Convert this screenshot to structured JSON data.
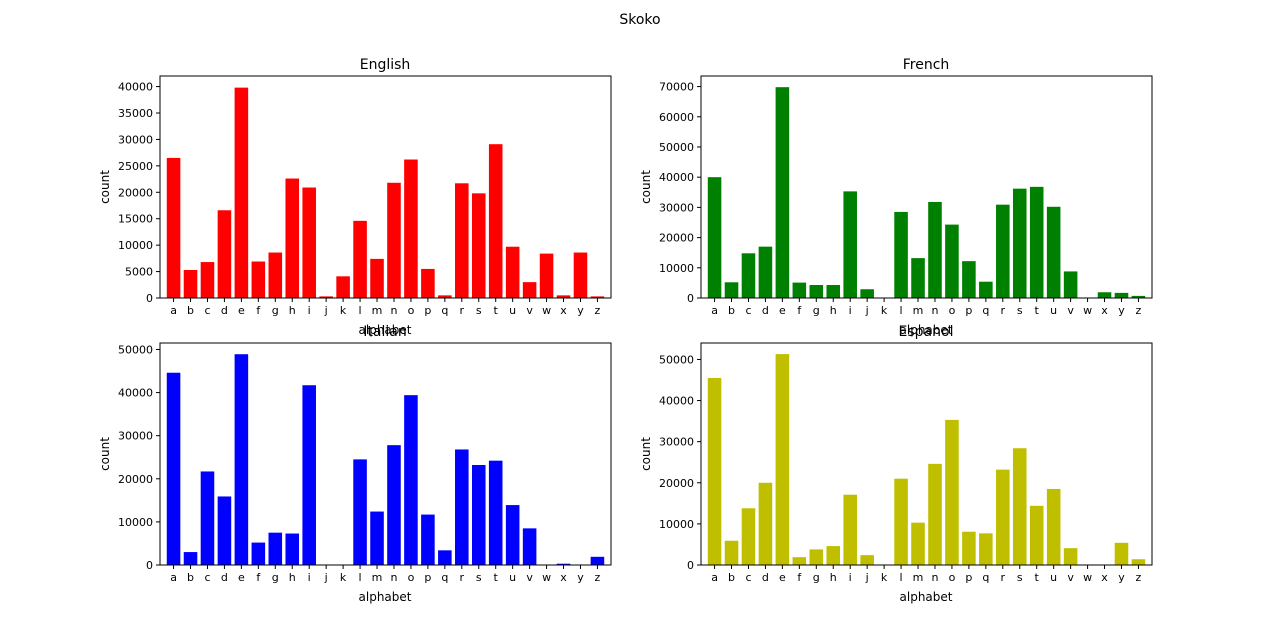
{
  "suptitle": "Skoko",
  "chart_data": [
    {
      "type": "bar",
      "title": "English",
      "xlabel": "alphabet",
      "ylabel": "count",
      "color": "#ff0000",
      "ylim": [
        0,
        42000
      ],
      "yticks": [
        0,
        5000,
        10000,
        15000,
        20000,
        25000,
        30000,
        35000,
        40000
      ],
      "categories": [
        "a",
        "b",
        "c",
        "d",
        "e",
        "f",
        "g",
        "h",
        "i",
        "j",
        "k",
        "l",
        "m",
        "n",
        "o",
        "p",
        "q",
        "r",
        "s",
        "t",
        "u",
        "v",
        "w",
        "x",
        "y",
        "z"
      ],
      "values": [
        26500,
        5300,
        6800,
        16600,
        39800,
        6900,
        8600,
        22600,
        20900,
        300,
        4100,
        14600,
        7400,
        21800,
        26200,
        5500,
        500,
        21700,
        19800,
        29100,
        9700,
        3000,
        8400,
        500,
        8600,
        300
      ],
      "grid": false,
      "legend": "none"
    },
    {
      "type": "bar",
      "title": "French",
      "xlabel": "alphabet",
      "ylabel": "count",
      "color": "#008000",
      "ylim": [
        0,
        73500
      ],
      "yticks": [
        0,
        10000,
        20000,
        30000,
        40000,
        50000,
        60000,
        70000
      ],
      "categories": [
        "a",
        "b",
        "c",
        "d",
        "e",
        "f",
        "g",
        "h",
        "i",
        "j",
        "k",
        "l",
        "m",
        "n",
        "o",
        "p",
        "q",
        "r",
        "s",
        "t",
        "u",
        "v",
        "w",
        "x",
        "y",
        "z"
      ],
      "values": [
        40000,
        5200,
        14800,
        17000,
        69800,
        5100,
        4300,
        4300,
        35300,
        2900,
        0,
        28500,
        13200,
        31800,
        24300,
        12200,
        5400,
        30900,
        36200,
        36800,
        30200,
        8800,
        0,
        1900,
        1700,
        700
      ],
      "grid": false,
      "legend": "none"
    },
    {
      "type": "bar",
      "title": "Italian",
      "xlabel": "alphabet",
      "ylabel": "count",
      "color": "#0000ff",
      "ylim": [
        0,
        51500
      ],
      "yticks": [
        0,
        10000,
        20000,
        30000,
        40000,
        50000
      ],
      "categories": [
        "a",
        "b",
        "c",
        "d",
        "e",
        "f",
        "g",
        "h",
        "i",
        "j",
        "k",
        "l",
        "m",
        "n",
        "o",
        "p",
        "q",
        "r",
        "s",
        "t",
        "u",
        "v",
        "w",
        "x",
        "y",
        "z"
      ],
      "values": [
        44600,
        3000,
        21700,
        15900,
        48900,
        5200,
        7500,
        7300,
        41700,
        0,
        0,
        24500,
        12400,
        27800,
        39400,
        11700,
        3400,
        26800,
        23200,
        24200,
        13900,
        8500,
        0,
        300,
        0,
        1900
      ],
      "grid": false,
      "legend": "none"
    },
    {
      "type": "bar",
      "title": "Espanol",
      "xlabel": "alphabet",
      "ylabel": "count",
      "color": "#bfbf00",
      "ylim": [
        0,
        54000
      ],
      "yticks": [
        0,
        10000,
        20000,
        30000,
        40000,
        50000
      ],
      "categories": [
        "a",
        "b",
        "c",
        "d",
        "e",
        "f",
        "g",
        "h",
        "i",
        "j",
        "k",
        "l",
        "m",
        "n",
        "o",
        "p",
        "q",
        "r",
        "s",
        "t",
        "u",
        "v",
        "w",
        "x",
        "y",
        "z"
      ],
      "values": [
        45500,
        5900,
        13800,
        20000,
        51300,
        1900,
        3800,
        4600,
        17100,
        2400,
        0,
        21000,
        10300,
        24600,
        35300,
        8100,
        7700,
        23200,
        28400,
        14400,
        18500,
        4100,
        0,
        0,
        5400,
        1400
      ],
      "grid": false,
      "legend": "none"
    }
  ]
}
